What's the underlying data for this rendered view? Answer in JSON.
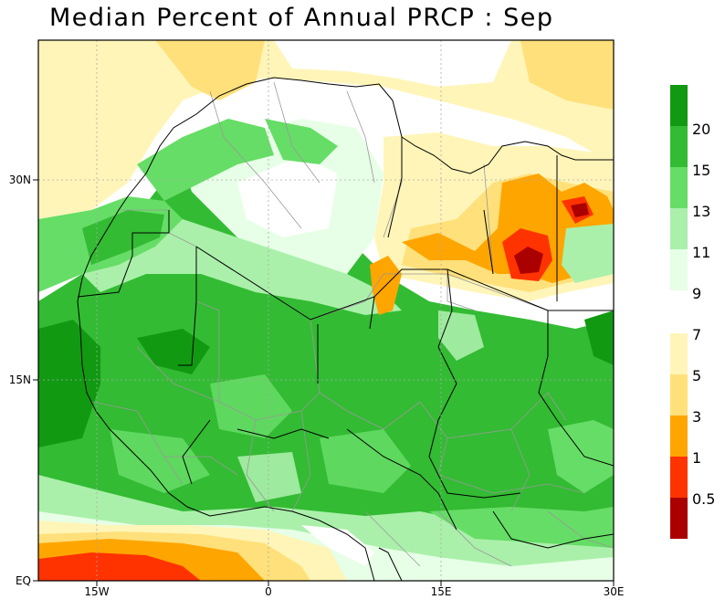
{
  "title": "Median Percent of Annual PRCP :    Sep",
  "x_axis": {
    "ticks": [
      "15W",
      "0",
      "15E",
      "30E"
    ]
  },
  "y_axis": {
    "ticks": [
      "EQ",
      "15N",
      "30N"
    ]
  },
  "colorbar": {
    "labels": [
      "20",
      "15",
      "13",
      "11",
      "9",
      "7",
      "5",
      "3",
      "1",
      "0.5"
    ],
    "colors_upper": [
      "#119911",
      "#33bb33",
      "#66dd66",
      "#aaf0aa",
      "#e6ffe6"
    ],
    "colors_lower": [
      "#fff5b8",
      "#ffe07a",
      "#ffa500",
      "#ff3300",
      "#aa0000"
    ]
  },
  "colors": {
    "ocean_white": "#ffffff",
    "pale_green": "#e6ffe6",
    "light_green": "#aaf0aa",
    "mid_green": "#66dd66",
    "green": "#33bb33",
    "dark_green": "#119911",
    "pale_yellow": "#fff5b8",
    "yellow": "#ffe07a",
    "orange": "#ffa500",
    "red_orange": "#ff3300",
    "dark_red": "#aa0000"
  }
}
